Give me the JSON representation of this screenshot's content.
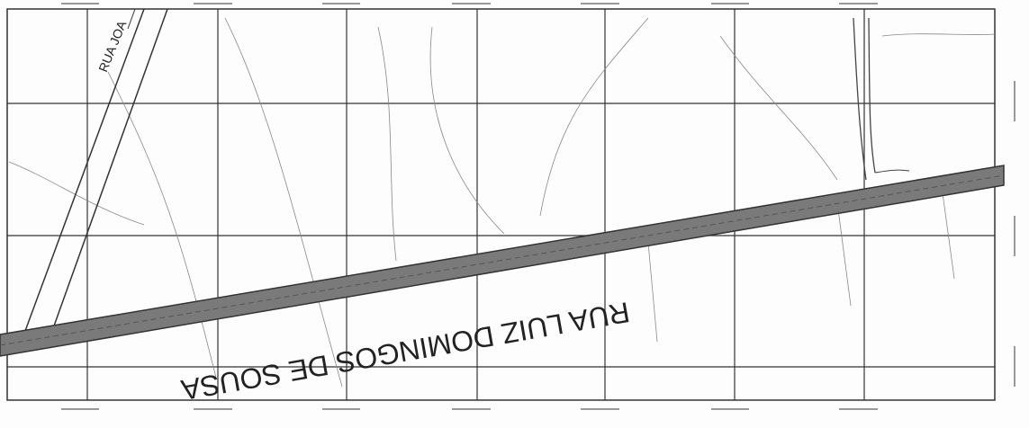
{
  "labels": {
    "main_road": "RUA LUIZ DOMINGOS DE SOUSA",
    "side_road": "RUA JOA"
  }
}
